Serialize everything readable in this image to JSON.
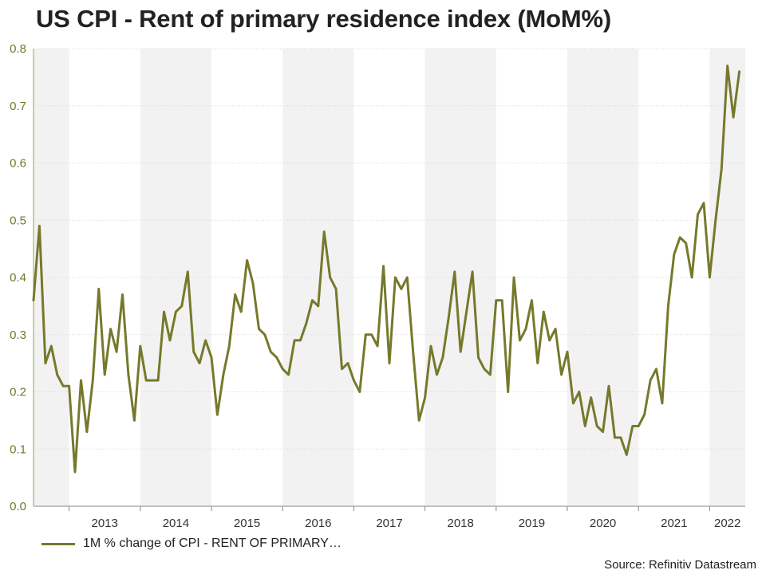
{
  "chart_data": {
    "type": "line",
    "title": "US CPI - Rent of primary residence index (MoM%)",
    "xlabel": "",
    "ylabel": "",
    "ylim": [
      0,
      0.8
    ],
    "yticks": [
      "0.0",
      "0.1",
      "0.2",
      "0.3",
      "0.4",
      "0.5",
      "0.6",
      "0.7",
      "0.8"
    ],
    "x_start": 2012.5,
    "x_end": 2022.5,
    "year_labels": [
      "2013",
      "2014",
      "2015",
      "2016",
      "2017",
      "2018",
      "2019",
      "2020",
      "2021",
      "2022"
    ],
    "shaded_years": [
      "2012-H2",
      "2014",
      "2016",
      "2018",
      "2020",
      "2022"
    ],
    "series": [
      {
        "name": "1M % change of CPI - RENT OF PRIMARY…",
        "color": "#76792b",
        "start": "2012-07",
        "values": [
          0.36,
          0.49,
          0.25,
          0.28,
          0.23,
          0.21,
          0.21,
          0.06,
          0.22,
          0.13,
          0.22,
          0.38,
          0.23,
          0.31,
          0.27,
          0.37,
          0.23,
          0.15,
          0.28,
          0.22,
          0.22,
          0.22,
          0.34,
          0.29,
          0.34,
          0.35,
          0.41,
          0.27,
          0.25,
          0.29,
          0.26,
          0.16,
          0.23,
          0.28,
          0.37,
          0.34,
          0.43,
          0.39,
          0.31,
          0.3,
          0.27,
          0.26,
          0.24,
          0.23,
          0.29,
          0.29,
          0.32,
          0.36,
          0.35,
          0.48,
          0.4,
          0.38,
          0.24,
          0.25,
          0.22,
          0.2,
          0.3,
          0.3,
          0.28,
          0.42,
          0.25,
          0.4,
          0.38,
          0.4,
          0.27,
          0.15,
          0.19,
          0.28,
          0.23,
          0.26,
          0.33,
          0.41,
          0.27,
          0.34,
          0.41,
          0.26,
          0.24,
          0.23,
          0.36,
          0.36,
          0.2,
          0.4,
          0.29,
          0.31,
          0.36,
          0.25,
          0.34,
          0.29,
          0.31,
          0.23,
          0.27,
          0.18,
          0.2,
          0.14,
          0.19,
          0.14,
          0.13,
          0.21,
          0.12,
          0.12,
          0.09,
          0.14,
          0.14,
          0.16,
          0.22,
          0.24,
          0.18,
          0.35,
          0.44,
          0.47,
          0.46,
          0.4,
          0.51,
          0.53,
          0.4,
          0.5,
          0.59,
          0.77,
          0.68,
          0.76
        ]
      }
    ]
  },
  "legend": {
    "label": "1M % change of CPI - RENT OF PRIMARY…"
  },
  "source": "Source: Refinitiv Datastream"
}
